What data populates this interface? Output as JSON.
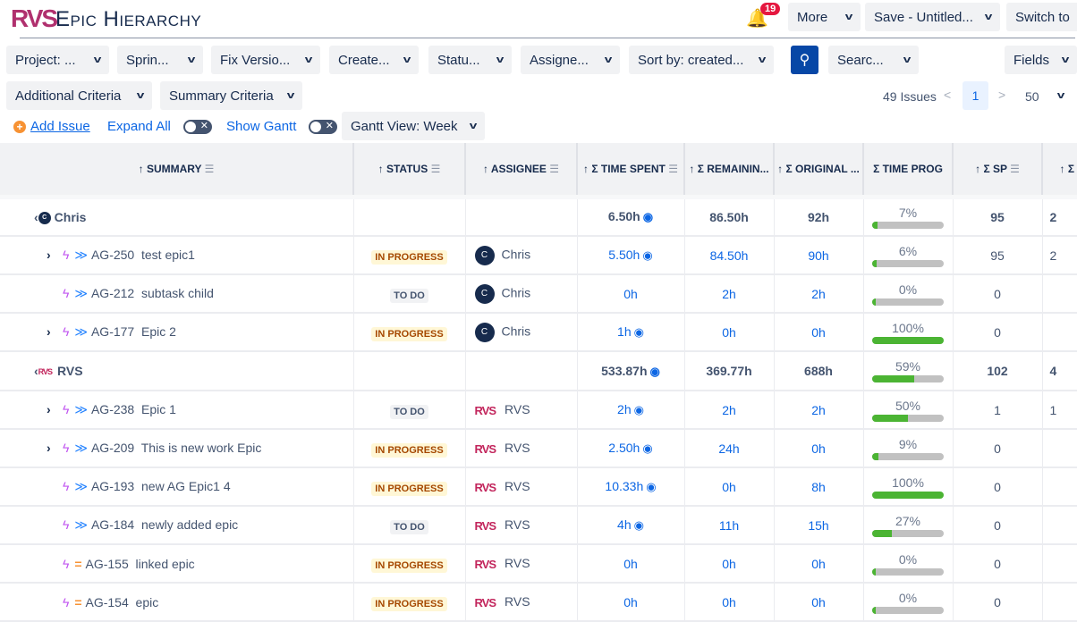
{
  "app": {
    "logo": "RVS",
    "title": "Epic Hierarchy",
    "notifications": "19"
  },
  "top_buttons": {
    "more": "More",
    "save": "Save - Untitled...",
    "switch": "Switch to"
  },
  "filters": [
    "Project: ...",
    "Sprin...",
    "Fix Versio...",
    "Create...",
    "Statu...",
    "Assigne...",
    "Sort by: created..."
  ],
  "search_filter": "Searc...",
  "fields": "Fields",
  "criteria": {
    "additional": "Additional Criteria",
    "summary": "Summary Criteria"
  },
  "actions": {
    "add_issue": "Add Issue",
    "expand_all": "Expand All",
    "show_gantt": "Show Gantt",
    "gantt_view": "Gantt View: Week"
  },
  "pagination": {
    "count": "49 Issues",
    "page": "1",
    "per_page": "50"
  },
  "columns": [
    "↑ SUMMARY",
    "↑ STATUS",
    "↑ ASSIGNEE",
    "↑ Σ TIME SPENT",
    "↑ Σ REMAININ...",
    "↑ Σ ORIGINAL ...",
    "Σ TIME PROG",
    "↑ Σ SP",
    "↑ Σ SP"
  ],
  "rows": [
    {
      "group": true,
      "name": "Chris",
      "avatar": "C",
      "spent": "6.50h",
      "remaining": "86.50h",
      "original": "92h",
      "progress": 7,
      "progress_label": "7%",
      "sp": "95",
      "sp2": "2"
    },
    {
      "key": "AG-250",
      "summary": "test epic1",
      "expand": true,
      "priority": "low",
      "status": "IN PROGRESS",
      "assignee": "Chris",
      "avatar": "C",
      "spent": "5.50h",
      "eye": true,
      "remaining": "84.50h",
      "original": "90h",
      "progress": 6,
      "progress_label": "6%",
      "sp": "95",
      "sp2": "2"
    },
    {
      "key": "AG-212",
      "summary": "subtask child",
      "expand": false,
      "priority": "low",
      "status": "TO DO",
      "assignee": "Chris",
      "avatar": "C",
      "spent": "0h",
      "remaining": "2h",
      "original": "2h",
      "progress": 0,
      "progress_label": "0%",
      "sp": "0",
      "sp2": ""
    },
    {
      "key": "AG-177",
      "summary": "Epic 2",
      "expand": true,
      "priority": "low",
      "status": "IN PROGRESS",
      "assignee": "Chris",
      "avatar": "C",
      "spent": "1h",
      "eye": true,
      "remaining": "0h",
      "original": "0h",
      "progress": 100,
      "progress_label": "100%",
      "sp": "0",
      "sp2": ""
    },
    {
      "group": true,
      "name": "RVS",
      "avatar": "RVS",
      "spent": "533.87h",
      "remaining": "369.77h",
      "original": "688h",
      "progress": 59,
      "progress_label": "59%",
      "sp": "102",
      "sp2": "4"
    },
    {
      "key": "AG-238",
      "summary": "Epic 1",
      "expand": true,
      "priority": "low",
      "status": "TO DO",
      "assignee": "RVS",
      "avatar": "RVS",
      "spent": "2h",
      "eye": true,
      "remaining": "2h",
      "original": "2h",
      "progress": 50,
      "progress_label": "50%",
      "sp": "1",
      "sp2": "1"
    },
    {
      "key": "AG-209",
      "summary": "This is new work Epic",
      "expand": true,
      "priority": "low",
      "status": "IN PROGRESS",
      "assignee": "RVS",
      "avatar": "RVS",
      "spent": "2.50h",
      "eye": true,
      "remaining": "24h",
      "original": "0h",
      "progress": 9,
      "progress_label": "9%",
      "sp": "0",
      "sp2": ""
    },
    {
      "key": "AG-193",
      "summary": "new AG Epic1 4",
      "expand": false,
      "priority": "low",
      "status": "IN PROGRESS",
      "assignee": "RVS",
      "avatar": "RVS",
      "spent": "10.33h",
      "eye": true,
      "remaining": "0h",
      "original": "8h",
      "progress": 100,
      "progress_label": "100%",
      "sp": "0",
      "sp2": ""
    },
    {
      "key": "AG-184",
      "summary": "newly added epic",
      "expand": false,
      "priority": "low",
      "status": "TO DO",
      "assignee": "RVS",
      "avatar": "RVS",
      "spent": "4h",
      "eye": true,
      "remaining": "11h",
      "original": "15h",
      "progress": 27,
      "progress_label": "27%",
      "sp": "0",
      "sp2": ""
    },
    {
      "key": "AG-155",
      "summary": "linked epic",
      "expand": false,
      "priority": "medium",
      "status": "IN PROGRESS",
      "assignee": "RVS",
      "avatar": "RVS",
      "spent": "0h",
      "remaining": "0h",
      "original": "0h",
      "progress": 0,
      "progress_label": "0%",
      "sp": "0",
      "sp2": ""
    },
    {
      "key": "AG-154",
      "summary": "epic",
      "expand": false,
      "priority": "medium",
      "status": "IN PROGRESS",
      "assignee": "RVS",
      "avatar": "RVS",
      "spent": "0h",
      "remaining": "0h",
      "original": "0h",
      "progress": 0,
      "progress_label": "0%",
      "sp": "0",
      "sp2": ""
    }
  ]
}
